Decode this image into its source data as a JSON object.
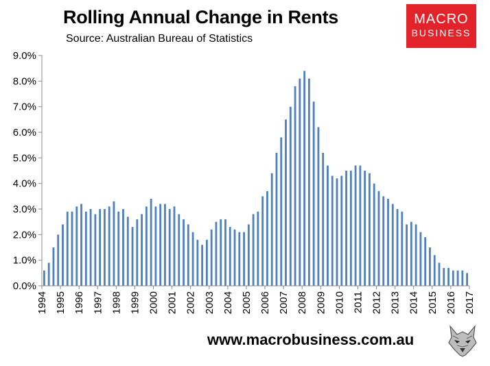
{
  "chart_data": {
    "type": "bar",
    "title": "Rolling Annual Change in Rents",
    "subtitle": "Source: Australian Bureau of Statistics",
    "xlabel": "",
    "ylabel": "",
    "ylim": [
      0,
      9
    ],
    "yticks": [
      "0.0%",
      "1.0%",
      "2.0%",
      "3.0%",
      "4.0%",
      "5.0%",
      "6.0%",
      "7.0%",
      "8.0%",
      "9.0%"
    ],
    "xticks": [
      "1994",
      "1995",
      "1996",
      "1997",
      "1998",
      "1999",
      "2000",
      "2001",
      "2002",
      "2003",
      "2004",
      "2005",
      "2006",
      "2007",
      "2008",
      "2009",
      "2010",
      "2011",
      "2012",
      "2013",
      "2014",
      "2015",
      "2016",
      "2017"
    ],
    "bar_color": "#4f81bd",
    "grid": false,
    "legend": "none",
    "values": [
      0.6,
      0.9,
      1.5,
      2.0,
      2.4,
      2.9,
      2.9,
      3.1,
      3.2,
      2.9,
      3.0,
      2.8,
      3.0,
      3.0,
      3.1,
      3.3,
      2.9,
      3.0,
      2.7,
      2.3,
      2.6,
      2.8,
      3.1,
      3.4,
      3.1,
      3.2,
      3.2,
      3.0,
      3.1,
      2.8,
      2.6,
      2.4,
      2.1,
      1.8,
      1.6,
      1.8,
      2.2,
      2.5,
      2.6,
      2.6,
      2.3,
      2.2,
      2.1,
      2.1,
      2.4,
      2.8,
      2.9,
      3.5,
      3.7,
      4.4,
      5.2,
      5.8,
      6.5,
      7.0,
      7.8,
      8.1,
      8.4,
      8.1,
      7.2,
      6.2,
      5.2,
      4.7,
      4.3,
      4.2,
      4.3,
      4.5,
      4.5,
      4.7,
      4.7,
      4.5,
      4.4,
      4.0,
      3.7,
      3.5,
      3.4,
      3.2,
      3.0,
      2.9,
      2.4,
      2.5,
      2.4,
      2.1,
      1.9,
      1.5,
      1.2,
      0.9,
      0.7,
      0.7,
      0.6,
      0.6,
      0.6,
      0.5
    ]
  },
  "header": {
    "title": "Rolling Annual Change in Rents",
    "subtitle": "Source: Australian Bureau of Statistics"
  },
  "logo": {
    "line1": "MACRO",
    "line2": "BUSINESS"
  },
  "footer": {
    "url": "www.macrobusiness.com.au",
    "icon": "wolf-icon"
  }
}
